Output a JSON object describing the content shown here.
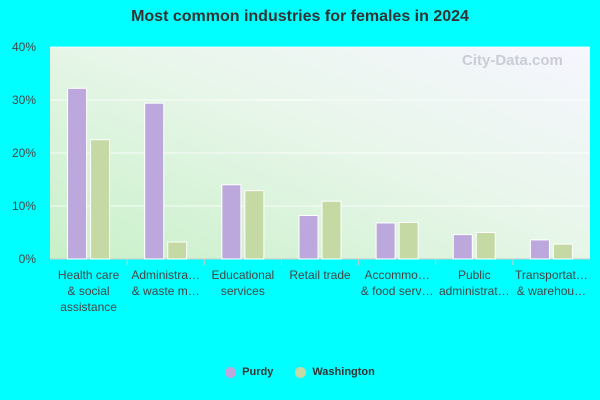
{
  "colors": {
    "background": "#00ffff",
    "series": [
      "#bca8dc",
      "#c5d9a4"
    ]
  },
  "watermark": "City-Data.com",
  "chart_data": {
    "type": "bar",
    "title": "Most common industries for females in 2024",
    "categories": [
      [
        "Health care",
        "& social",
        "assistance"
      ],
      [
        "Administra…",
        "& waste m…"
      ],
      [
        "Educational",
        "services"
      ],
      [
        "Retail trade"
      ],
      [
        "Accommo…",
        "& food serv…"
      ],
      [
        "Public",
        "administrat…"
      ],
      [
        "Transportat…",
        "& warehou…"
      ]
    ],
    "series": [
      {
        "name": "Purdy",
        "values": [
          32.2,
          29.4,
          14.0,
          8.2,
          6.8,
          4.6,
          3.6
        ]
      },
      {
        "name": "Washington",
        "values": [
          22.5,
          3.2,
          12.9,
          10.9,
          6.9,
          5.0,
          2.8
        ]
      }
    ],
    "yticks": [
      "0%",
      "10%",
      "20%",
      "30%",
      "40%"
    ],
    "ylim": [
      0,
      40
    ],
    "grid": true,
    "legend": "bottom-center"
  }
}
